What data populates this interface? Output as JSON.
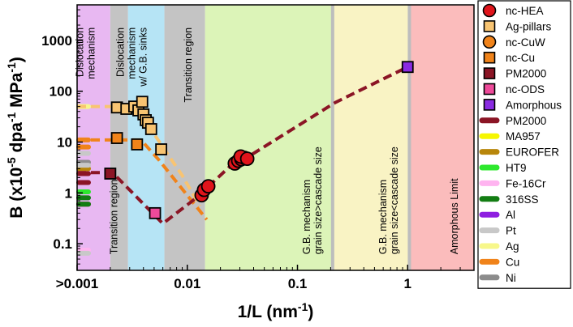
{
  "chart_data": {
    "type": "scatter",
    "xscale": "log",
    "yscale": "log",
    "xlim": [
      0.001,
      4
    ],
    "ylim": [
      0.03,
      5000
    ],
    "xlabel": "1/L (nm",
    "xlabel_sup": "-1",
    "xlabel_end": ")",
    "ylabel": "B (x10",
    "ylabel_sup1": "-5",
    "ylabel_mid": " dpa",
    "ylabel_sup2": "-1",
    "ylabel_mid2": " MPa",
    "ylabel_sup3": "-1",
    "ylabel_end": ")",
    "xticks": [
      {
        "value": 0.001,
        "label": ">0.001"
      },
      {
        "value": 0.01,
        "label": "0.01"
      },
      {
        "value": 0.1,
        "label": "0.1"
      },
      {
        "value": 1,
        "label": "1"
      }
    ],
    "yticks": [
      {
        "value": 0.1,
        "label": "0.1"
      },
      {
        "value": 1,
        "label": "1"
      },
      {
        "value": 10,
        "label": "10"
      },
      {
        "value": 100,
        "label": "100"
      },
      {
        "value": 1000,
        "label": "1000"
      }
    ],
    "regions": [
      {
        "from": 0.001,
        "to": 0.002,
        "color": "#e8b8f2",
        "lines": [
          "Dislocation",
          "mechanism"
        ],
        "text_x": 0.00128,
        "text_y": 1800
      },
      {
        "from": 0.002,
        "to": 0.0029,
        "color": "#c4c4c4",
        "lines": [
          "Transition region"
        ],
        "text_x": 0.00232,
        "text_y": 0.062
      },
      {
        "from": 0.0029,
        "to": 0.0062,
        "color": "#b6e4f5",
        "lines": [
          "Dislocation",
          "mechanism",
          "w/ G.B. sinks"
        ],
        "text_x": 0.00335,
        "text_y": 1800
      },
      {
        "from": 0.0062,
        "to": 0.0145,
        "color": "#c4c4c4",
        "lines": [
          "Transition region"
        ],
        "text_x": 0.0109,
        "text_y": 1800
      },
      {
        "from": 0.0145,
        "to": 0.205,
        "color": "#dcf4b8",
        "lines": [
          "G.B. mechanism",
          "grain size>cascade size"
        ],
        "text_x": 0.146,
        "text_y": 0.062
      },
      {
        "from": 0.21,
        "to": 1.02,
        "color": "#f9f3c4",
        "lines": [
          "G.B. mechanism",
          "grain size<cascade size"
        ],
        "text_x": 0.72,
        "text_y": 0.062
      },
      {
        "from": 1.04,
        "to": 4,
        "color": "#fbbcbc",
        "lines": [
          "Amorphous Limit"
        ],
        "text_x": 2.85,
        "text_y": 0.062
      }
    ],
    "series": [
      {
        "name": "nc-HEA",
        "marker": "circle",
        "color": "#e0141b",
        "points": [
          [
            0.0135,
            0.9
          ],
          [
            0.0142,
            1.15
          ],
          [
            0.0155,
            1.35
          ],
          [
            0.027,
            3.8
          ],
          [
            0.029,
            4.3
          ],
          [
            0.031,
            4.6
          ],
          [
            0.033,
            4.9
          ],
          [
            0.0305,
            5.2
          ],
          [
            0.035,
            4.7
          ]
        ]
      },
      {
        "name": "Ag-pillars",
        "marker": "square",
        "color": "#f8c472",
        "points": [
          [
            0.0023,
            48
          ],
          [
            0.0028,
            45
          ],
          [
            0.0033,
            50
          ],
          [
            0.0036,
            42
          ],
          [
            0.0039,
            62
          ],
          [
            0.004,
            35
          ],
          [
            0.0042,
            27
          ],
          [
            0.0044,
            24
          ],
          [
            0.0047,
            18
          ],
          [
            0.0058,
            7.2
          ]
        ]
      },
      {
        "name": "nc-CuW",
        "marker": "circle",
        "color": "#f0831a",
        "points": []
      },
      {
        "name": "nc-Cu",
        "marker": "square",
        "color": "#f0831a",
        "points": [
          [
            0.0023,
            12
          ],
          [
            0.0035,
            9
          ]
        ]
      },
      {
        "name": "PM2000",
        "marker": "square",
        "color": "#8b1525",
        "points": [
          [
            0.002,
            2.4
          ]
        ]
      },
      {
        "name": "nc-ODS",
        "marker": "square",
        "color": "#ee4a9a",
        "points": [
          [
            0.0051,
            0.4
          ]
        ]
      },
      {
        "name": "Amorphous",
        "marker": "square",
        "color": "#8a2be2",
        "points": [
          [
            1.0,
            300
          ]
        ]
      },
      {
        "name": "PM2000",
        "marker": "bar",
        "color": "#8b1525",
        "values": [
          2.4,
          1.6
        ]
      },
      {
        "name": "MA957",
        "marker": "bar",
        "color": "#f6f600",
        "values": []
      },
      {
        "name": "EUROFER",
        "marker": "bar",
        "color": "#b8860b",
        "values": [
          3.0
        ]
      },
      {
        "name": "HT9",
        "marker": "bar",
        "color": "#2ee82e",
        "values": [
          1.05
        ]
      },
      {
        "name": "Fe-16Cr",
        "marker": "bar",
        "color": "#ffb4f0",
        "values": [
          0.075
        ]
      },
      {
        "name": "316SS",
        "marker": "bar",
        "color": "#137d13",
        "values": [
          0.8
        ]
      },
      {
        "name": "Al",
        "marker": "bar",
        "color": "#8e1fe0",
        "values": []
      },
      {
        "name": "Pt",
        "marker": "bar",
        "color": "#c8c8c8",
        "values": [
          0.065
        ]
      },
      {
        "name": "Ag",
        "marker": "bar",
        "color": "#f7f78a",
        "values": [
          50
        ]
      },
      {
        "name": "Cu",
        "marker": "bar",
        "color": "#f0831a",
        "values": [
          11
        ]
      },
      {
        "name": "Ni",
        "marker": "bar",
        "color": "#8c8c8c",
        "values": [
          4.0
        ]
      }
    ],
    "extra_bars": [
      {
        "color": "#8b1525",
        "values": [
          0.6
        ]
      },
      {
        "color": "#137d13",
        "values": [
          0.6
        ]
      },
      {
        "color": "#c8c8c8",
        "values": [
          6.0,
          3.5
        ]
      },
      {
        "color": "#f0831a",
        "values": [
          8.0
        ]
      }
    ],
    "fit_lines": [
      {
        "color": "#f8c472",
        "points": [
          [
            0.001,
            50
          ],
          [
            0.0038,
            50
          ],
          [
            0.0045,
            20
          ],
          [
            0.009,
            2.2
          ],
          [
            0.013,
            0.55
          ]
        ]
      },
      {
        "color": "#f0831a",
        "points": [
          [
            0.001,
            11
          ],
          [
            0.0038,
            11
          ],
          [
            0.0055,
            4.5
          ],
          [
            0.015,
            0.3
          ]
        ]
      },
      {
        "color": "#8b1525",
        "points": [
          [
            0.001,
            2.5
          ],
          [
            0.0021,
            2.5
          ],
          [
            0.006,
            0.25
          ],
          [
            0.013,
            0.9
          ],
          [
            0.017,
            1.6
          ],
          [
            0.025,
            3.5
          ],
          [
            0.04,
            6
          ],
          [
            0.22,
            60
          ],
          [
            1.0,
            300
          ]
        ]
      }
    ]
  }
}
